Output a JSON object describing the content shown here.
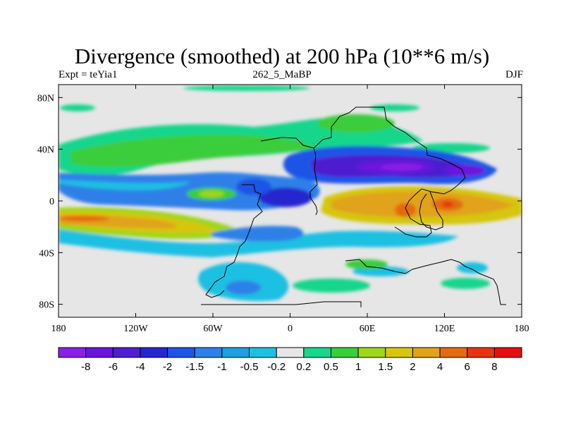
{
  "title": "Divergence (smoothed) at 200 hPa (10**6 m/s)",
  "left_subtitle": "Expt = teYia1",
  "center_subtitle": "262_5_MaBP",
  "right_subtitle": "DJF",
  "chart_data": {
    "type": "heatmap",
    "variable": "Divergence (smoothed)",
    "level": "200 hPa",
    "units": "10**6 m/s",
    "season": "DJF",
    "x_range": [
      -180,
      180
    ],
    "y_range": [
      -90,
      90
    ],
    "x_ticks": [
      {
        "value": -180,
        "label": "180"
      },
      {
        "value": -120,
        "label": "120W"
      },
      {
        "value": -60,
        "label": "60W"
      },
      {
        "value": 0,
        "label": "0"
      },
      {
        "value": 60,
        "label": "60E"
      },
      {
        "value": 120,
        "label": "120E"
      },
      {
        "value": 180,
        "label": "180"
      }
    ],
    "y_ticks": [
      {
        "value": 80,
        "label": "80N"
      },
      {
        "value": 40,
        "label": "40N"
      },
      {
        "value": 0,
        "label": "0"
      },
      {
        "value": -40,
        "label": "40S"
      },
      {
        "value": -80,
        "label": "80S"
      }
    ],
    "colorbar": {
      "labels": [
        "-8",
        "-6",
        "-4",
        "-2",
        "-1.5",
        "-1",
        "-0.5",
        "-0.2",
        "0.2",
        "0.5",
        "1",
        "1.5",
        "2",
        "4",
        "6",
        "8"
      ],
      "colors": [
        "#8a1fe6",
        "#6b15dc",
        "#4d1fd0",
        "#2626cf",
        "#1f55e6",
        "#2e80e8",
        "#1e9fe0",
        "#1ec0e2",
        "#e6e6e6",
        "#17d68c",
        "#3acd3a",
        "#9ed61e",
        "#d6c610",
        "#e1a21a",
        "#e56a10",
        "#e53410",
        "#e60f0f"
      ]
    }
  }
}
